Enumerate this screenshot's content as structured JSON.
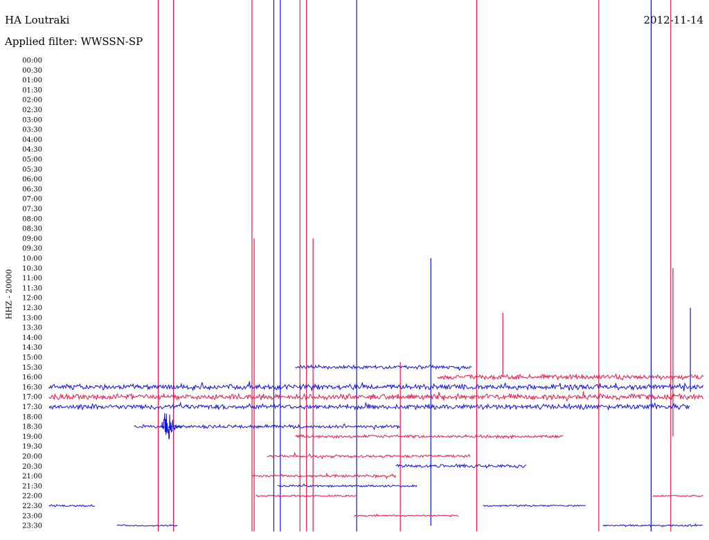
{
  "header": {
    "station": "HA Loutraki",
    "date": "2012-11-14",
    "filter_label": "Applied filter: WWSSN-SP"
  },
  "chart_data": {
    "type": "line",
    "ylabel": "HHZ - 20000",
    "colors": {
      "odd": "#e8174a",
      "even": "#1010d8"
    },
    "row_labels": [
      "00:00",
      "00:30",
      "01:00",
      "01:30",
      "02:00",
      "02:30",
      "03:00",
      "03:30",
      "04:00",
      "04:30",
      "05:00",
      "05:30",
      "06:00",
      "06:30",
      "07:00",
      "07:30",
      "08:00",
      "08:30",
      "09:00",
      "09:30",
      "10:00",
      "10:30",
      "11:00",
      "11:30",
      "12:00",
      "12:30",
      "13:00",
      "13:30",
      "14:00",
      "14:30",
      "15:00",
      "15:30",
      "16:00",
      "16:30",
      "17:00",
      "17:30",
      "18:00",
      "18:30",
      "19:00",
      "19:30",
      "20:00",
      "20:30",
      "21:00",
      "21:30",
      "22:00",
      "22:30",
      "23:00",
      "23:30"
    ],
    "x_range_minutes": [
      0,
      30
    ],
    "trace_segments": [
      {
        "row": 31,
        "start": 11.3,
        "end": 19.4,
        "amp": 0.22
      },
      {
        "row": 32,
        "start": 17.8,
        "end": 30,
        "amp": 0.28
      },
      {
        "row": 33,
        "start": 0,
        "end": 30,
        "amp": 0.3
      },
      {
        "row": 34,
        "start": 0,
        "end": 30,
        "amp": 0.32
      },
      {
        "row": 35,
        "start": 0,
        "end": 29.4,
        "amp": 0.3
      },
      {
        "row": 37,
        "start": 3.9,
        "end": 16.1,
        "amp": 0.2
      },
      {
        "row": 38,
        "start": 11.3,
        "end": 23.6,
        "amp": 0.18
      },
      {
        "row": 40,
        "start": 10.0,
        "end": 19.3,
        "amp": 0.16
      },
      {
        "row": 41,
        "start": 15.9,
        "end": 21.9,
        "amp": 0.2
      },
      {
        "row": 42,
        "start": 9.3,
        "end": 15.9,
        "amp": 0.14
      },
      {
        "row": 43,
        "start": 10.5,
        "end": 16.9,
        "amp": 0.12
      },
      {
        "row": 44,
        "start": 9.5,
        "end": 14.1,
        "amp": 0.1
      },
      {
        "row": 44,
        "start": 27.7,
        "end": 30,
        "amp": 0.1
      },
      {
        "row": 45,
        "start": 0,
        "end": 2.1,
        "amp": 0.12
      },
      {
        "row": 45,
        "start": 19.9,
        "end": 24.6,
        "amp": 0.1
      },
      {
        "row": 46,
        "start": 14.0,
        "end": 18.8,
        "amp": 0.1
      },
      {
        "row": 47,
        "start": 3.1,
        "end": 5.9,
        "amp": 0.1
      },
      {
        "row": 47,
        "start": 25.4,
        "end": 30,
        "amp": 0.12
      }
    ],
    "events": [
      {
        "row": 37,
        "minute": 5.4,
        "amp": 3.4
      }
    ],
    "spikes": [
      {
        "minute": 5.0,
        "color": "odd",
        "from": 0,
        "to": 47.6
      },
      {
        "minute": 5.7,
        "color": "odd",
        "from": 0,
        "to": 47.6
      },
      {
        "minute": 9.3,
        "color": "odd",
        "from": 0,
        "to": 47.6
      },
      {
        "minute": 10.3,
        "color": "even",
        "from": 0,
        "to": 47.6
      },
      {
        "minute": 10.6,
        "color": "even",
        "from": 0,
        "to": 47.6
      },
      {
        "minute": 11.5,
        "color": "odd",
        "from": 0,
        "to": 47.6
      },
      {
        "minute": 11.8,
        "color": "odd",
        "from": 0,
        "to": 47.6
      },
      {
        "minute": 14.1,
        "color": "even",
        "from": 0,
        "to": 47.6
      },
      {
        "minute": 19.6,
        "color": "odd",
        "from": 0,
        "to": 47.6
      },
      {
        "minute": 25.2,
        "color": "odd",
        "from": 0,
        "to": 47.6
      },
      {
        "minute": 27.6,
        "color": "even",
        "from": 0,
        "to": 47.6
      },
      {
        "minute": 28.5,
        "color": "odd",
        "from": 0,
        "to": 47.6
      },
      {
        "minute": 17.5,
        "color": "even",
        "from": 20.0,
        "to": 47.0
      },
      {
        "minute": 16.1,
        "color": "odd",
        "from": 30.5,
        "to": 47.6
      },
      {
        "minute": 9.4,
        "color": "odd",
        "from": 18.0,
        "to": 47.6
      },
      {
        "minute": 12.1,
        "color": "odd",
        "from": 18.0,
        "to": 47.6
      },
      {
        "minute": 20.8,
        "color": "odd",
        "from": 25.5,
        "to": 32.0
      },
      {
        "minute": 28.6,
        "color": "odd",
        "from": 21.0,
        "to": 38.0
      },
      {
        "minute": 29.4,
        "color": "even",
        "from": 25.0,
        "to": 33.5
      }
    ]
  }
}
